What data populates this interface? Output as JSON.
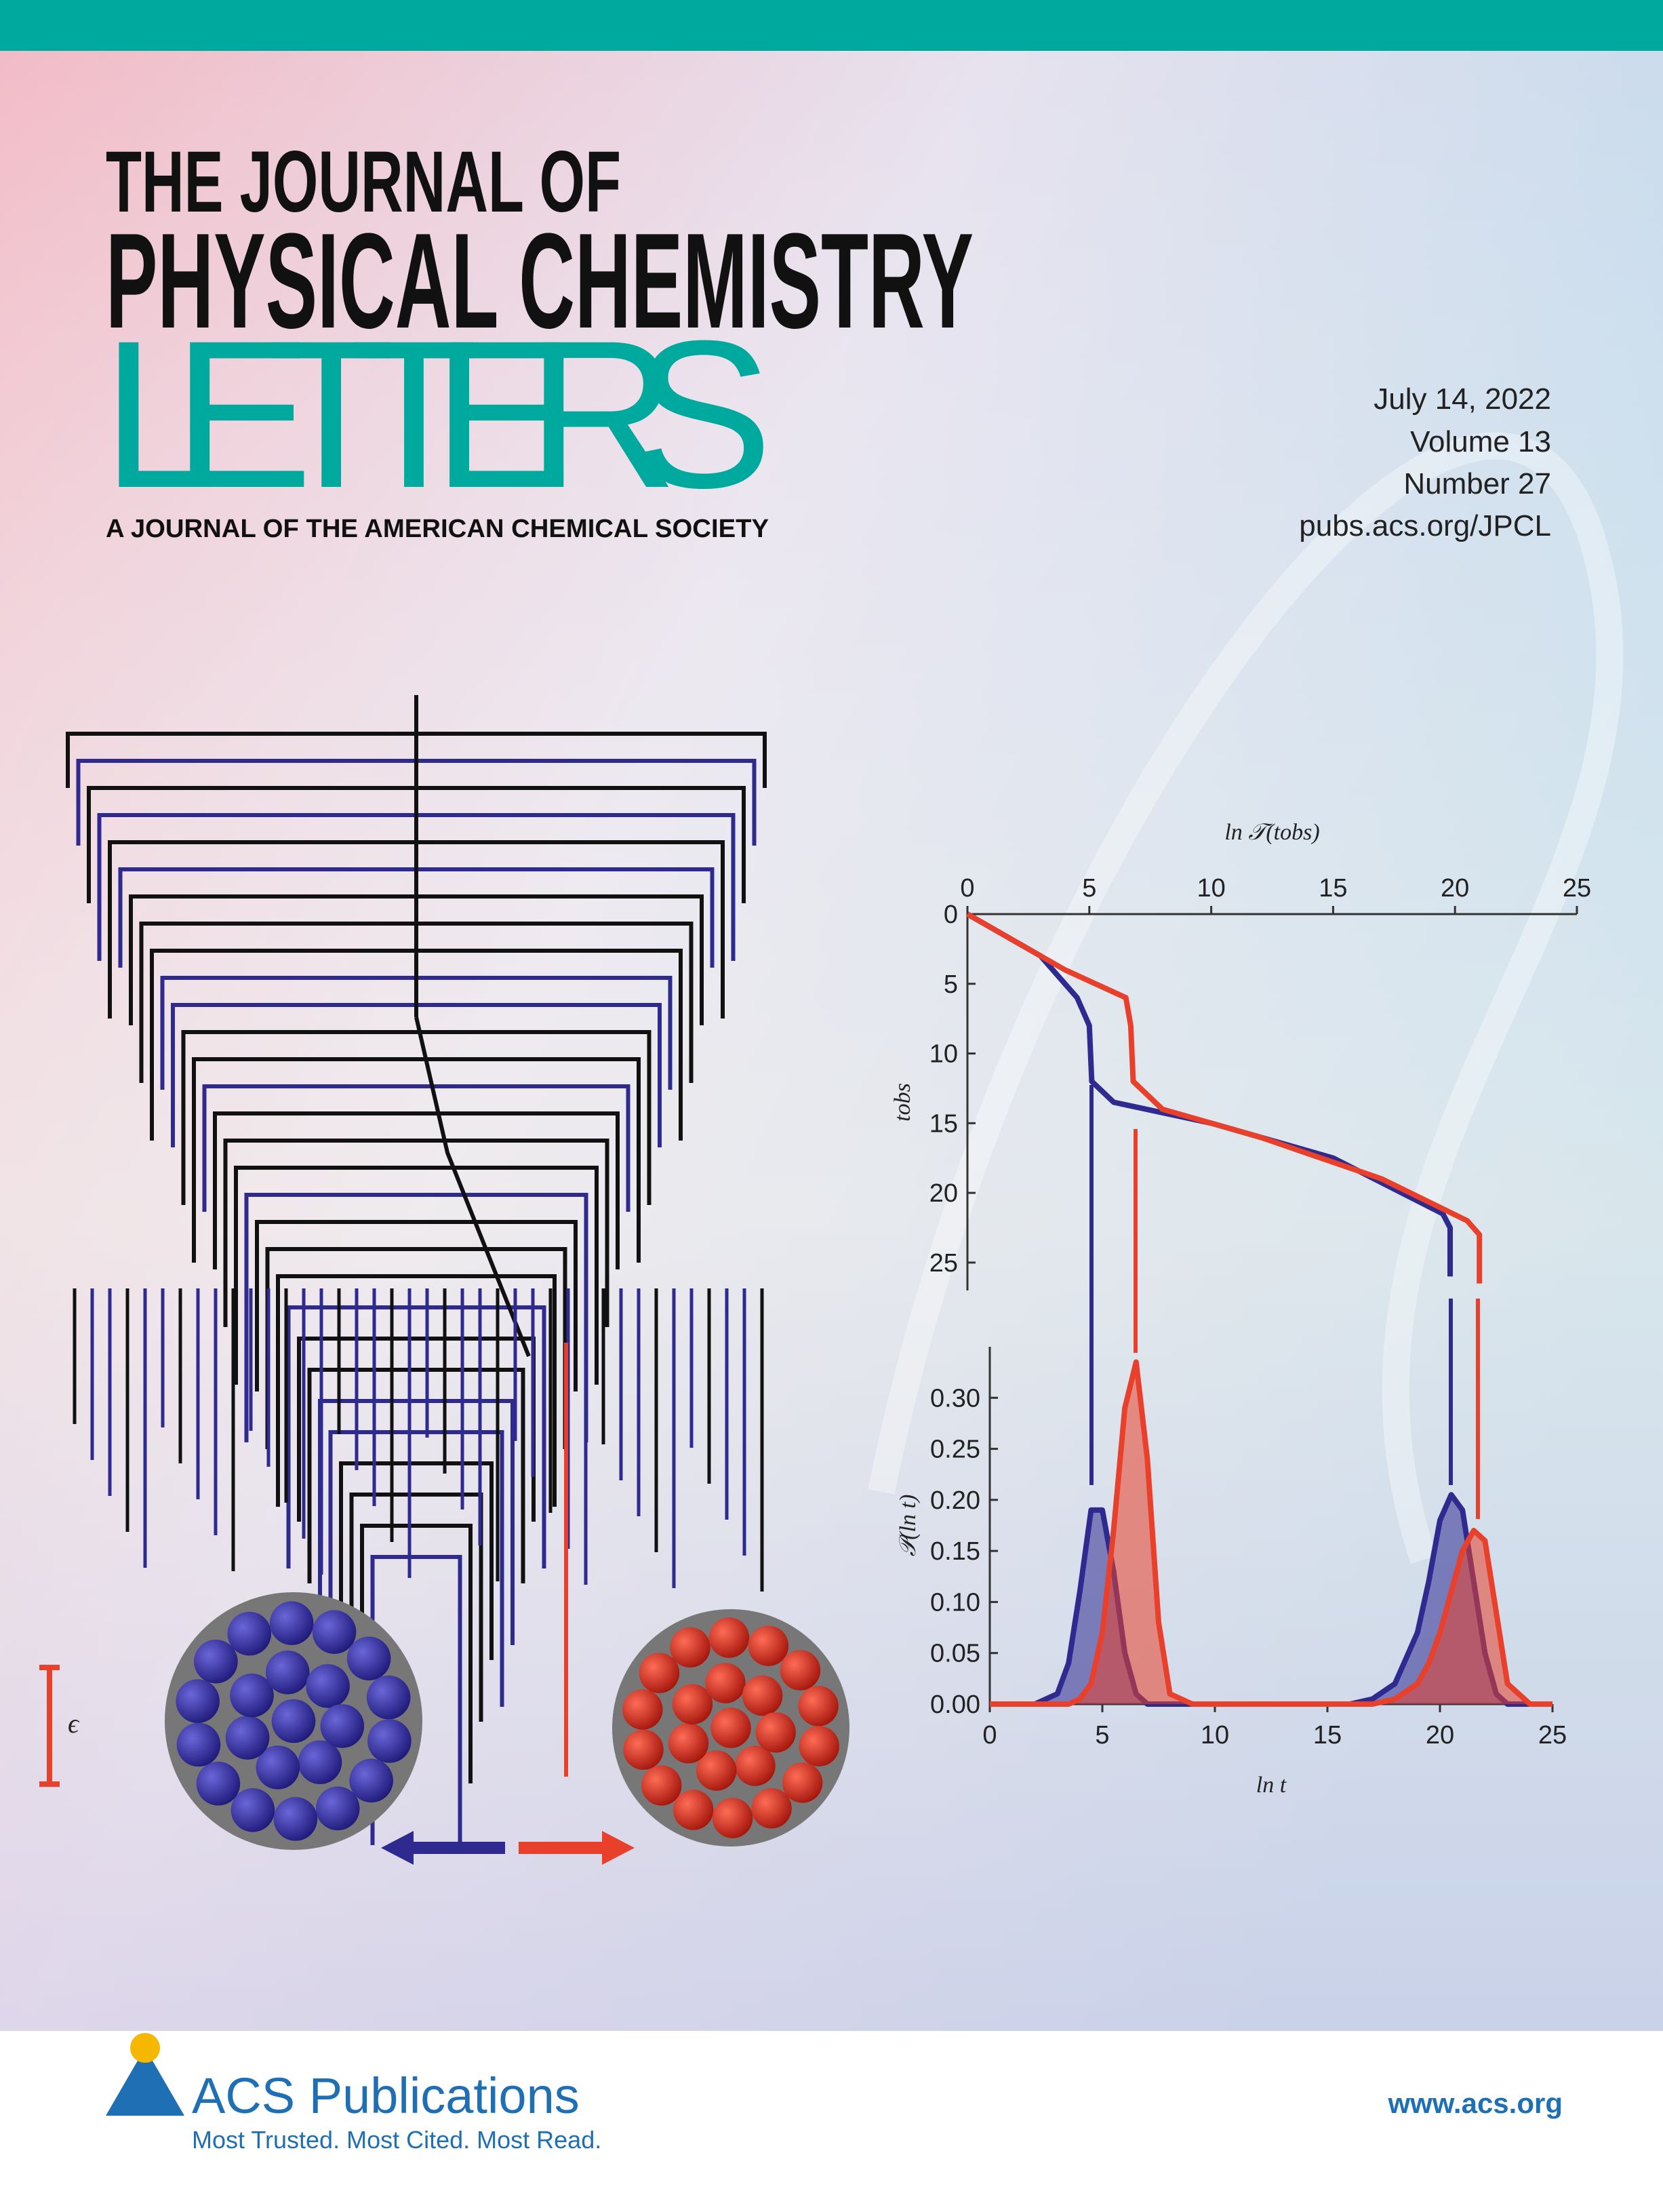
{
  "header": {
    "title_line1": "THE JOURNAL OF",
    "title_line2": "PHYSICAL CHEMISTRY",
    "title_line3": "LETTERS",
    "subtitle": "A JOURNAL OF THE AMERICAN CHEMICAL SOCIETY"
  },
  "issue": {
    "date": "July 14, 2022",
    "volume": "Volume 13",
    "number": "Number 27",
    "url": "pubs.acs.org/JPCL"
  },
  "cover_art": {
    "energy_scale_label": "ϵ"
  },
  "chart_data": [
    {
      "type": "line",
      "xlabel": "ln 𝒯(tobs)",
      "ylabel": "tobs",
      "xlim": [
        0,
        25
      ],
      "ylim": [
        0,
        27
      ],
      "xticks": [
        0,
        5,
        10,
        15,
        20,
        25
      ],
      "yticks": [
        0,
        5,
        10,
        15,
        20,
        25
      ],
      "series": [
        {
          "color": "#2e2a8f",
          "x": [
            0,
            3,
            4.5,
            5,
            5.1,
            6,
            10,
            15,
            19.5,
            19.8,
            19.8
          ],
          "values": [
            0,
            3,
            6,
            8,
            12,
            13.5,
            15,
            17.5,
            21.5,
            22.5,
            26
          ]
        },
        {
          "color": "#e8402a",
          "x": [
            0,
            4,
            6.5,
            6.7,
            6.8,
            8,
            12,
            17,
            20.5,
            21,
            21
          ],
          "values": [
            0,
            4,
            6,
            8,
            12,
            14,
            16,
            19,
            22,
            23,
            26.5
          ]
        }
      ]
    },
    {
      "type": "area",
      "xlabel": "ln t",
      "ylabel": "𝒫(ln t)",
      "xlim": [
        0,
        25
      ],
      "ylim": [
        0,
        0.35
      ],
      "xticks": [
        0,
        5,
        10,
        15,
        20,
        25
      ],
      "yticks": [
        {
          "value": 0,
          "label": "0.00"
        },
        {
          "value": 0.05,
          "label": "0.05"
        },
        {
          "value": 0.1,
          "label": "0.10"
        },
        {
          "value": 0.15,
          "label": "0.15"
        },
        {
          "value": 0.2,
          "label": "0.20"
        },
        {
          "value": 0.25,
          "label": "0.25"
        },
        {
          "value": 0.3,
          "label": "0.30"
        }
      ],
      "x": [
        0,
        2,
        3,
        3.5,
        4,
        4.5,
        5,
        5.5,
        6,
        6.5,
        7,
        7.5,
        8,
        9,
        12,
        16,
        17,
        18,
        19,
        19.5,
        20,
        20.5,
        21,
        21.5,
        22,
        22.5,
        23,
        24,
        25
      ],
      "series": [
        {
          "color": "#2e2a8f",
          "values": [
            0,
            0,
            0.01,
            0.04,
            0.11,
            0.19,
            0.19,
            0.13,
            0.05,
            0.01,
            0,
            0,
            0,
            0,
            0,
            0,
            0.005,
            0.02,
            0.07,
            0.12,
            0.18,
            0.205,
            0.19,
            0.12,
            0.05,
            0.01,
            0,
            0,
            0
          ]
        },
        {
          "color": "#e8402a",
          "values": [
            0,
            0,
            0,
            0,
            0.005,
            0.02,
            0.07,
            0.17,
            0.29,
            0.335,
            0.24,
            0.08,
            0.01,
            0,
            0,
            0,
            0,
            0.005,
            0.02,
            0.04,
            0.07,
            0.11,
            0.15,
            0.17,
            0.16,
            0.09,
            0.02,
            0,
            0
          ]
        }
      ]
    }
  ],
  "footer": {
    "publisher": "ACS Publications",
    "tagline": "Most Trusted. Most Cited. Most Read.",
    "website": "www.acs.org"
  }
}
